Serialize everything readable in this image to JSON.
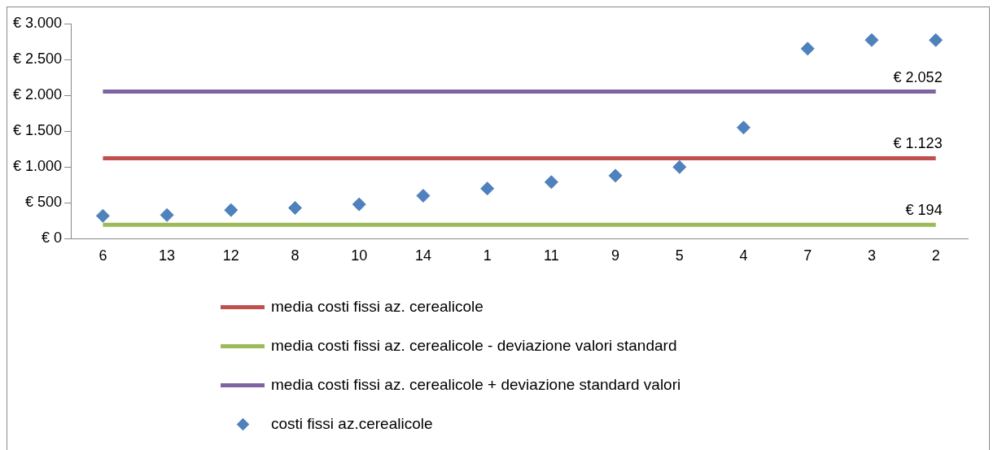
{
  "chart_data": {
    "type": "line",
    "categories": [
      "6",
      "13",
      "12",
      "8",
      "10",
      "14",
      "1",
      "11",
      "9",
      "5",
      "4",
      "7",
      "3",
      "2"
    ],
    "ylim": [
      0,
      3000
    ],
    "yticks": [
      {
        "value": 0,
        "label": "€ 0"
      },
      {
        "value": 500,
        "label": "€ 500"
      },
      {
        "value": 1000,
        "label": "€ 1.000"
      },
      {
        "value": 1500,
        "label": "€ 1.500"
      },
      {
        "value": 2000,
        "label": "€ 2.000"
      },
      {
        "value": 2500,
        "label": "€ 2.500"
      },
      {
        "value": 3000,
        "label": "€ 3.000"
      }
    ],
    "grid": false,
    "legend": "bottom",
    "series": [
      {
        "name": "media costi fissi az. cerealicole",
        "color": "#c0504d",
        "marker": "none",
        "values": [
          1123,
          1123,
          1123,
          1123,
          1123,
          1123,
          1123,
          1123,
          1123,
          1123,
          1123,
          1123,
          1123,
          1123
        ],
        "value_labels": [
          null,
          null,
          null,
          null,
          null,
          null,
          null,
          null,
          null,
          null,
          null,
          null,
          null,
          "€ 1.123"
        ]
      },
      {
        "name": "media costi fissi az. cerealicole - deviazione valori standard",
        "color": "#9bbb59",
        "marker": "none",
        "values": [
          194,
          194,
          194,
          194,
          194,
          194,
          194,
          194,
          194,
          194,
          194,
          194,
          194,
          194
        ],
        "value_labels": [
          null,
          null,
          null,
          null,
          null,
          null,
          null,
          null,
          null,
          null,
          null,
          null,
          null,
          "€ 194"
        ]
      },
      {
        "name": "media costi fissi az. cerealicole + deviazione standard valori",
        "color": "#8064a2",
        "marker": "none",
        "values": [
          2052,
          2052,
          2052,
          2052,
          2052,
          2052,
          2052,
          2052,
          2052,
          2052,
          2052,
          2052,
          2052,
          2052
        ],
        "value_labels": [
          null,
          null,
          null,
          null,
          null,
          null,
          null,
          null,
          null,
          null,
          null,
          null,
          null,
          "€ 2.052"
        ]
      },
      {
        "name": "costi fissi az.cerealicole",
        "color": "#4f81bd",
        "type": "scatter",
        "marker": "diamond",
        "values": [
          320,
          330,
          400,
          430,
          480,
          600,
          700,
          790,
          880,
          1000,
          1550,
          2650,
          2770,
          2770
        ]
      }
    ]
  }
}
